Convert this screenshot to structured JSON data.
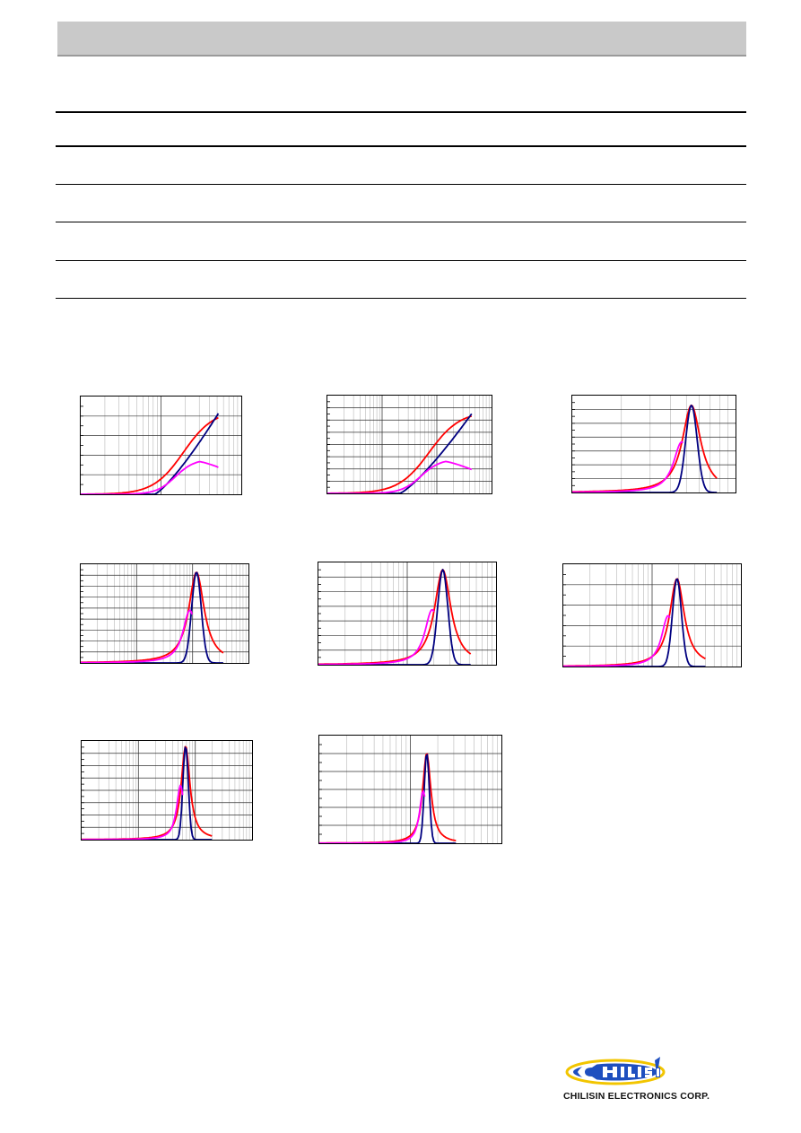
{
  "header": {
    "color": "#c9c9c9"
  },
  "table": {
    "rows": 5
  },
  "charts_common": {
    "type": "line",
    "x_scale": "log",
    "grid": true,
    "series_colors": {
      "z": "#ff0000",
      "r": "#000080",
      "x": "#ff00ff"
    }
  },
  "chart_data": [
    {
      "type": "line",
      "x_scale": "log",
      "shape": "rise",
      "peak": 0.86,
      "xpk": 0.84,
      "xsplit": 0.64,
      "w": 0.17,
      "y_grid_lines": 5,
      "decades": 2
    },
    {
      "type": "line",
      "x_scale": "log",
      "shape": "rise",
      "peak": 0.84,
      "xpk": 0.86,
      "xsplit": 0.62,
      "w": 0.17,
      "y_grid_lines": 8,
      "decades": 3
    },
    {
      "type": "line",
      "x_scale": "log",
      "shape": "peak",
      "peak": 0.9,
      "xpk": 0.73,
      "xsplit": 0.67,
      "w": 0.055,
      "y_grid_lines": 7,
      "decades": 1
    },
    {
      "type": "line",
      "x_scale": "log",
      "shape": "peak",
      "peak": 0.92,
      "xpk": 0.69,
      "xsplit": 0.65,
      "w": 0.045,
      "y_grid_lines": 9,
      "decades": 3
    },
    {
      "type": "line",
      "x_scale": "log",
      "shape": "peak",
      "peak": 0.93,
      "xpk": 0.7,
      "xsplit": 0.64,
      "w": 0.045,
      "y_grid_lines": 7,
      "decades": 2
    },
    {
      "type": "line",
      "x_scale": "log",
      "shape": "peak",
      "peak": 0.86,
      "xpk": 0.64,
      "xsplit": 0.59,
      "w": 0.04,
      "y_grid_lines": 5,
      "decades": 2
    },
    {
      "type": "line",
      "x_scale": "log",
      "shape": "peak",
      "peak": 0.95,
      "xpk": 0.61,
      "xsplit": 0.58,
      "w": 0.025,
      "y_grid_lines": 8,
      "decades": 3
    },
    {
      "type": "line",
      "x_scale": "log",
      "shape": "peak",
      "peak": 0.84,
      "xpk": 0.59,
      "xsplit": 0.57,
      "w": 0.022,
      "y_grid_lines": 6,
      "decades": 2
    }
  ],
  "logo": {
    "brand": "CHILISIN",
    "company": "CHILISIN ELECTRONICS CORP.",
    "colors": {
      "blue": "#1e4fbf",
      "yellow": "#f2c500"
    }
  }
}
